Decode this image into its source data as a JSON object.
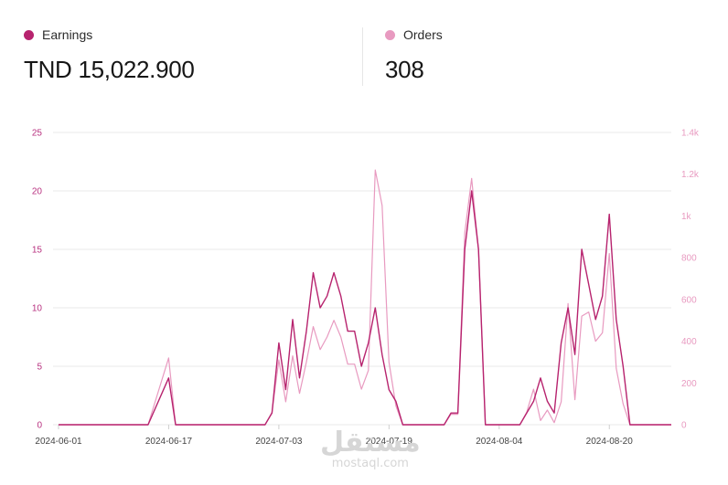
{
  "metrics": [
    {
      "label": "Earnings",
      "value": "TND 15,022.900",
      "color": "#b7236e"
    },
    {
      "label": "Orders",
      "value": "308",
      "color": "#e89ac0"
    }
  ],
  "watermark": {
    "arabic": "مستقل",
    "latin": "mostaql.com"
  },
  "chart_data": {
    "type": "line",
    "x_tick_labels": [
      "2024-06-01",
      "2024-06-17",
      "2024-07-03",
      "2024-07-19",
      "2024-08-04",
      "2024-08-20"
    ],
    "y_left": {
      "ticks": [
        "0",
        "5",
        "10",
        "15",
        "20",
        "25"
      ],
      "lim": [
        0,
        25
      ]
    },
    "y_right": {
      "ticks": [
        "0",
        "200",
        "400",
        "600",
        "800",
        "1k",
        "1.2k",
        "1.4k"
      ],
      "lim": [
        0,
        1400
      ]
    },
    "grid": true,
    "x_range": [
      "2024-06-01",
      "2024-08-29"
    ],
    "series": [
      {
        "name": "Earnings",
        "axis": "left",
        "color": "#b7236e",
        "points": [
          [
            "2024-06-01",
            0
          ],
          [
            "2024-06-12",
            0
          ],
          [
            "2024-06-14",
            0
          ],
          [
            "2024-06-17",
            4
          ],
          [
            "2024-06-18",
            0
          ],
          [
            "2024-06-29",
            0
          ],
          [
            "2024-07-01",
            0
          ],
          [
            "2024-07-02",
            1
          ],
          [
            "2024-07-03",
            7
          ],
          [
            "2024-07-04",
            3
          ],
          [
            "2024-07-05",
            9
          ],
          [
            "2024-07-06",
            4
          ],
          [
            "2024-07-07",
            8
          ],
          [
            "2024-07-08",
            13
          ],
          [
            "2024-07-09",
            10
          ],
          [
            "2024-07-10",
            11
          ],
          [
            "2024-07-11",
            13
          ],
          [
            "2024-07-12",
            11
          ],
          [
            "2024-07-13",
            8
          ],
          [
            "2024-07-14",
            8
          ],
          [
            "2024-07-15",
            5
          ],
          [
            "2024-07-16",
            7
          ],
          [
            "2024-07-17",
            10
          ],
          [
            "2024-07-18",
            6
          ],
          [
            "2024-07-19",
            3
          ],
          [
            "2024-07-20",
            2
          ],
          [
            "2024-07-21",
            0
          ],
          [
            "2024-07-27",
            0
          ],
          [
            "2024-07-28",
            1
          ],
          [
            "2024-07-29",
            1
          ],
          [
            "2024-07-30",
            15
          ],
          [
            "2024-07-31",
            20
          ],
          [
            "2024-08-01",
            15
          ],
          [
            "2024-08-02",
            0
          ],
          [
            "2024-08-07",
            0
          ],
          [
            "2024-08-08",
            1
          ],
          [
            "2024-08-09",
            2
          ],
          [
            "2024-08-10",
            4
          ],
          [
            "2024-08-11",
            2
          ],
          [
            "2024-08-12",
            1
          ],
          [
            "2024-08-13",
            7
          ],
          [
            "2024-08-14",
            10
          ],
          [
            "2024-08-15",
            6
          ],
          [
            "2024-08-16",
            15
          ],
          [
            "2024-08-17",
            12
          ],
          [
            "2024-08-18",
            9
          ],
          [
            "2024-08-19",
            11
          ],
          [
            "2024-08-20",
            18
          ],
          [
            "2024-08-21",
            9
          ],
          [
            "2024-08-22",
            5
          ],
          [
            "2024-08-23",
            0
          ],
          [
            "2024-08-29",
            0
          ]
        ]
      },
      {
        "name": "Orders",
        "axis": "right",
        "color": "#e89ac0",
        "points": [
          [
            "2024-06-01",
            0
          ],
          [
            "2024-06-12",
            0
          ],
          [
            "2024-06-14",
            0
          ],
          [
            "2024-06-17",
            320
          ],
          [
            "2024-06-18",
            0
          ],
          [
            "2024-06-29",
            0
          ],
          [
            "2024-07-01",
            0
          ],
          [
            "2024-07-02",
            60
          ],
          [
            "2024-07-03",
            310
          ],
          [
            "2024-07-04",
            110
          ],
          [
            "2024-07-05",
            330
          ],
          [
            "2024-07-06",
            150
          ],
          [
            "2024-07-07",
            300
          ],
          [
            "2024-07-08",
            470
          ],
          [
            "2024-07-09",
            360
          ],
          [
            "2024-07-10",
            420
          ],
          [
            "2024-07-11",
            500
          ],
          [
            "2024-07-12",
            420
          ],
          [
            "2024-07-13",
            290
          ],
          [
            "2024-07-14",
            290
          ],
          [
            "2024-07-15",
            170
          ],
          [
            "2024-07-16",
            260
          ],
          [
            "2024-07-17",
            1220
          ],
          [
            "2024-07-18",
            1050
          ],
          [
            "2024-07-19",
            300
          ],
          [
            "2024-07-20",
            90
          ],
          [
            "2024-07-21",
            0
          ],
          [
            "2024-07-27",
            0
          ],
          [
            "2024-07-28",
            50
          ],
          [
            "2024-07-29",
            50
          ],
          [
            "2024-07-30",
            920
          ],
          [
            "2024-07-31",
            1180
          ],
          [
            "2024-08-01",
            840
          ],
          [
            "2024-08-02",
            0
          ],
          [
            "2024-08-07",
            0
          ],
          [
            "2024-08-08",
            60
          ],
          [
            "2024-08-09",
            170
          ],
          [
            "2024-08-10",
            20
          ],
          [
            "2024-08-11",
            70
          ],
          [
            "2024-08-12",
            10
          ],
          [
            "2024-08-13",
            110
          ],
          [
            "2024-08-14",
            580
          ],
          [
            "2024-08-15",
            120
          ],
          [
            "2024-08-16",
            520
          ],
          [
            "2024-08-17",
            540
          ],
          [
            "2024-08-18",
            400
          ],
          [
            "2024-08-19",
            440
          ],
          [
            "2024-08-20",
            820
          ],
          [
            "2024-08-21",
            270
          ],
          [
            "2024-08-22",
            100
          ],
          [
            "2024-08-23",
            0
          ],
          [
            "2024-08-29",
            0
          ]
        ]
      }
    ]
  }
}
